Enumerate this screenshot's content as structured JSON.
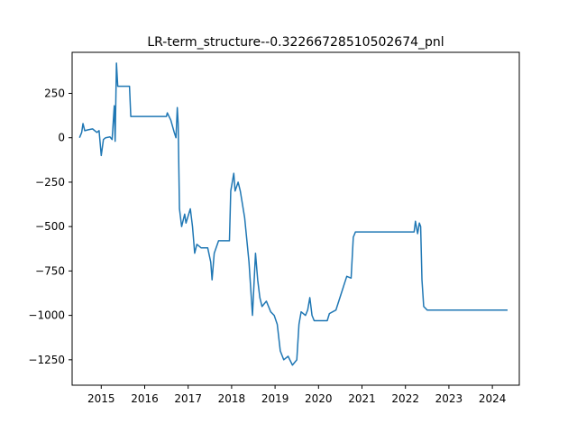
{
  "chart_data": {
    "type": "line",
    "title": "LR-term_structure--0.32266728510502674_pnl",
    "xlabel": "",
    "ylabel": "",
    "xlim": [
      2014.33,
      2024.62
    ],
    "ylim": [
      -1393,
      481
    ],
    "x_ticks": [
      2015,
      2016,
      2017,
      2018,
      2019,
      2020,
      2021,
      2022,
      2023,
      2024
    ],
    "x_tick_labels": [
      "2015",
      "2016",
      "2017",
      "2018",
      "2019",
      "2020",
      "2021",
      "2022",
      "2023",
      "2024"
    ],
    "y_ticks": [
      250,
      0,
      -250,
      -500,
      -750,
      -1000,
      -1250
    ],
    "y_tick_labels": [
      "250",
      "0",
      "−250",
      "−500",
      "−750",
      "−1000",
      "−1250"
    ],
    "grid": false,
    "series": [
      {
        "color": "#1f77b4",
        "points": [
          [
            2014.5,
            0
          ],
          [
            2014.55,
            30
          ],
          [
            2014.58,
            80
          ],
          [
            2014.62,
            40
          ],
          [
            2014.7,
            45
          ],
          [
            2014.8,
            50
          ],
          [
            2014.9,
            30
          ],
          [
            2014.95,
            40
          ],
          [
            2015.0,
            -100
          ],
          [
            2015.05,
            -10
          ],
          [
            2015.1,
            0
          ],
          [
            2015.2,
            5
          ],
          [
            2015.25,
            -10
          ],
          [
            2015.3,
            180
          ],
          [
            2015.32,
            -20
          ],
          [
            2015.35,
            420
          ],
          [
            2015.38,
            290
          ],
          [
            2015.65,
            290
          ],
          [
            2015.68,
            120
          ],
          [
            2016.5,
            120
          ],
          [
            2016.52,
            140
          ],
          [
            2016.6,
            100
          ],
          [
            2016.68,
            30
          ],
          [
            2016.72,
            0
          ],
          [
            2016.75,
            170
          ],
          [
            2016.77,
            80
          ],
          [
            2016.8,
            -400
          ],
          [
            2016.85,
            -500
          ],
          [
            2016.92,
            -430
          ],
          [
            2016.95,
            -480
          ],
          [
            2017.05,
            -400
          ],
          [
            2017.1,
            -500
          ],
          [
            2017.15,
            -650
          ],
          [
            2017.2,
            -600
          ],
          [
            2017.3,
            -620
          ],
          [
            2017.45,
            -620
          ],
          [
            2017.52,
            -700
          ],
          [
            2017.55,
            -800
          ],
          [
            2017.6,
            -650
          ],
          [
            2017.7,
            -580
          ],
          [
            2017.95,
            -580
          ],
          [
            2017.98,
            -300
          ],
          [
            2018.05,
            -200
          ],
          [
            2018.08,
            -300
          ],
          [
            2018.15,
            -250
          ],
          [
            2018.2,
            -300
          ],
          [
            2018.3,
            -450
          ],
          [
            2018.4,
            -700
          ],
          [
            2018.48,
            -1000
          ],
          [
            2018.55,
            -650
          ],
          [
            2018.6,
            -800
          ],
          [
            2018.65,
            -900
          ],
          [
            2018.7,
            -950
          ],
          [
            2018.8,
            -920
          ],
          [
            2018.9,
            -980
          ],
          [
            2018.98,
            -1000
          ],
          [
            2019.05,
            -1050
          ],
          [
            2019.12,
            -1200
          ],
          [
            2019.2,
            -1250
          ],
          [
            2019.3,
            -1230
          ],
          [
            2019.4,
            -1280
          ],
          [
            2019.5,
            -1250
          ],
          [
            2019.55,
            -1050
          ],
          [
            2019.6,
            -980
          ],
          [
            2019.7,
            -1000
          ],
          [
            2019.75,
            -970
          ],
          [
            2019.8,
            -900
          ],
          [
            2019.85,
            -1000
          ],
          [
            2019.9,
            -1030
          ],
          [
            2020.2,
            -1030
          ],
          [
            2020.25,
            -990
          ],
          [
            2020.4,
            -970
          ],
          [
            2020.65,
            -780
          ],
          [
            2020.75,
            -790
          ],
          [
            2020.8,
            -560
          ],
          [
            2020.85,
            -530
          ],
          [
            2022.2,
            -530
          ],
          [
            2022.23,
            -470
          ],
          [
            2022.28,
            -540
          ],
          [
            2022.32,
            -480
          ],
          [
            2022.35,
            -500
          ],
          [
            2022.38,
            -800
          ],
          [
            2022.42,
            -950
          ],
          [
            2022.5,
            -970
          ],
          [
            2024.35,
            -970
          ]
        ]
      }
    ]
  }
}
